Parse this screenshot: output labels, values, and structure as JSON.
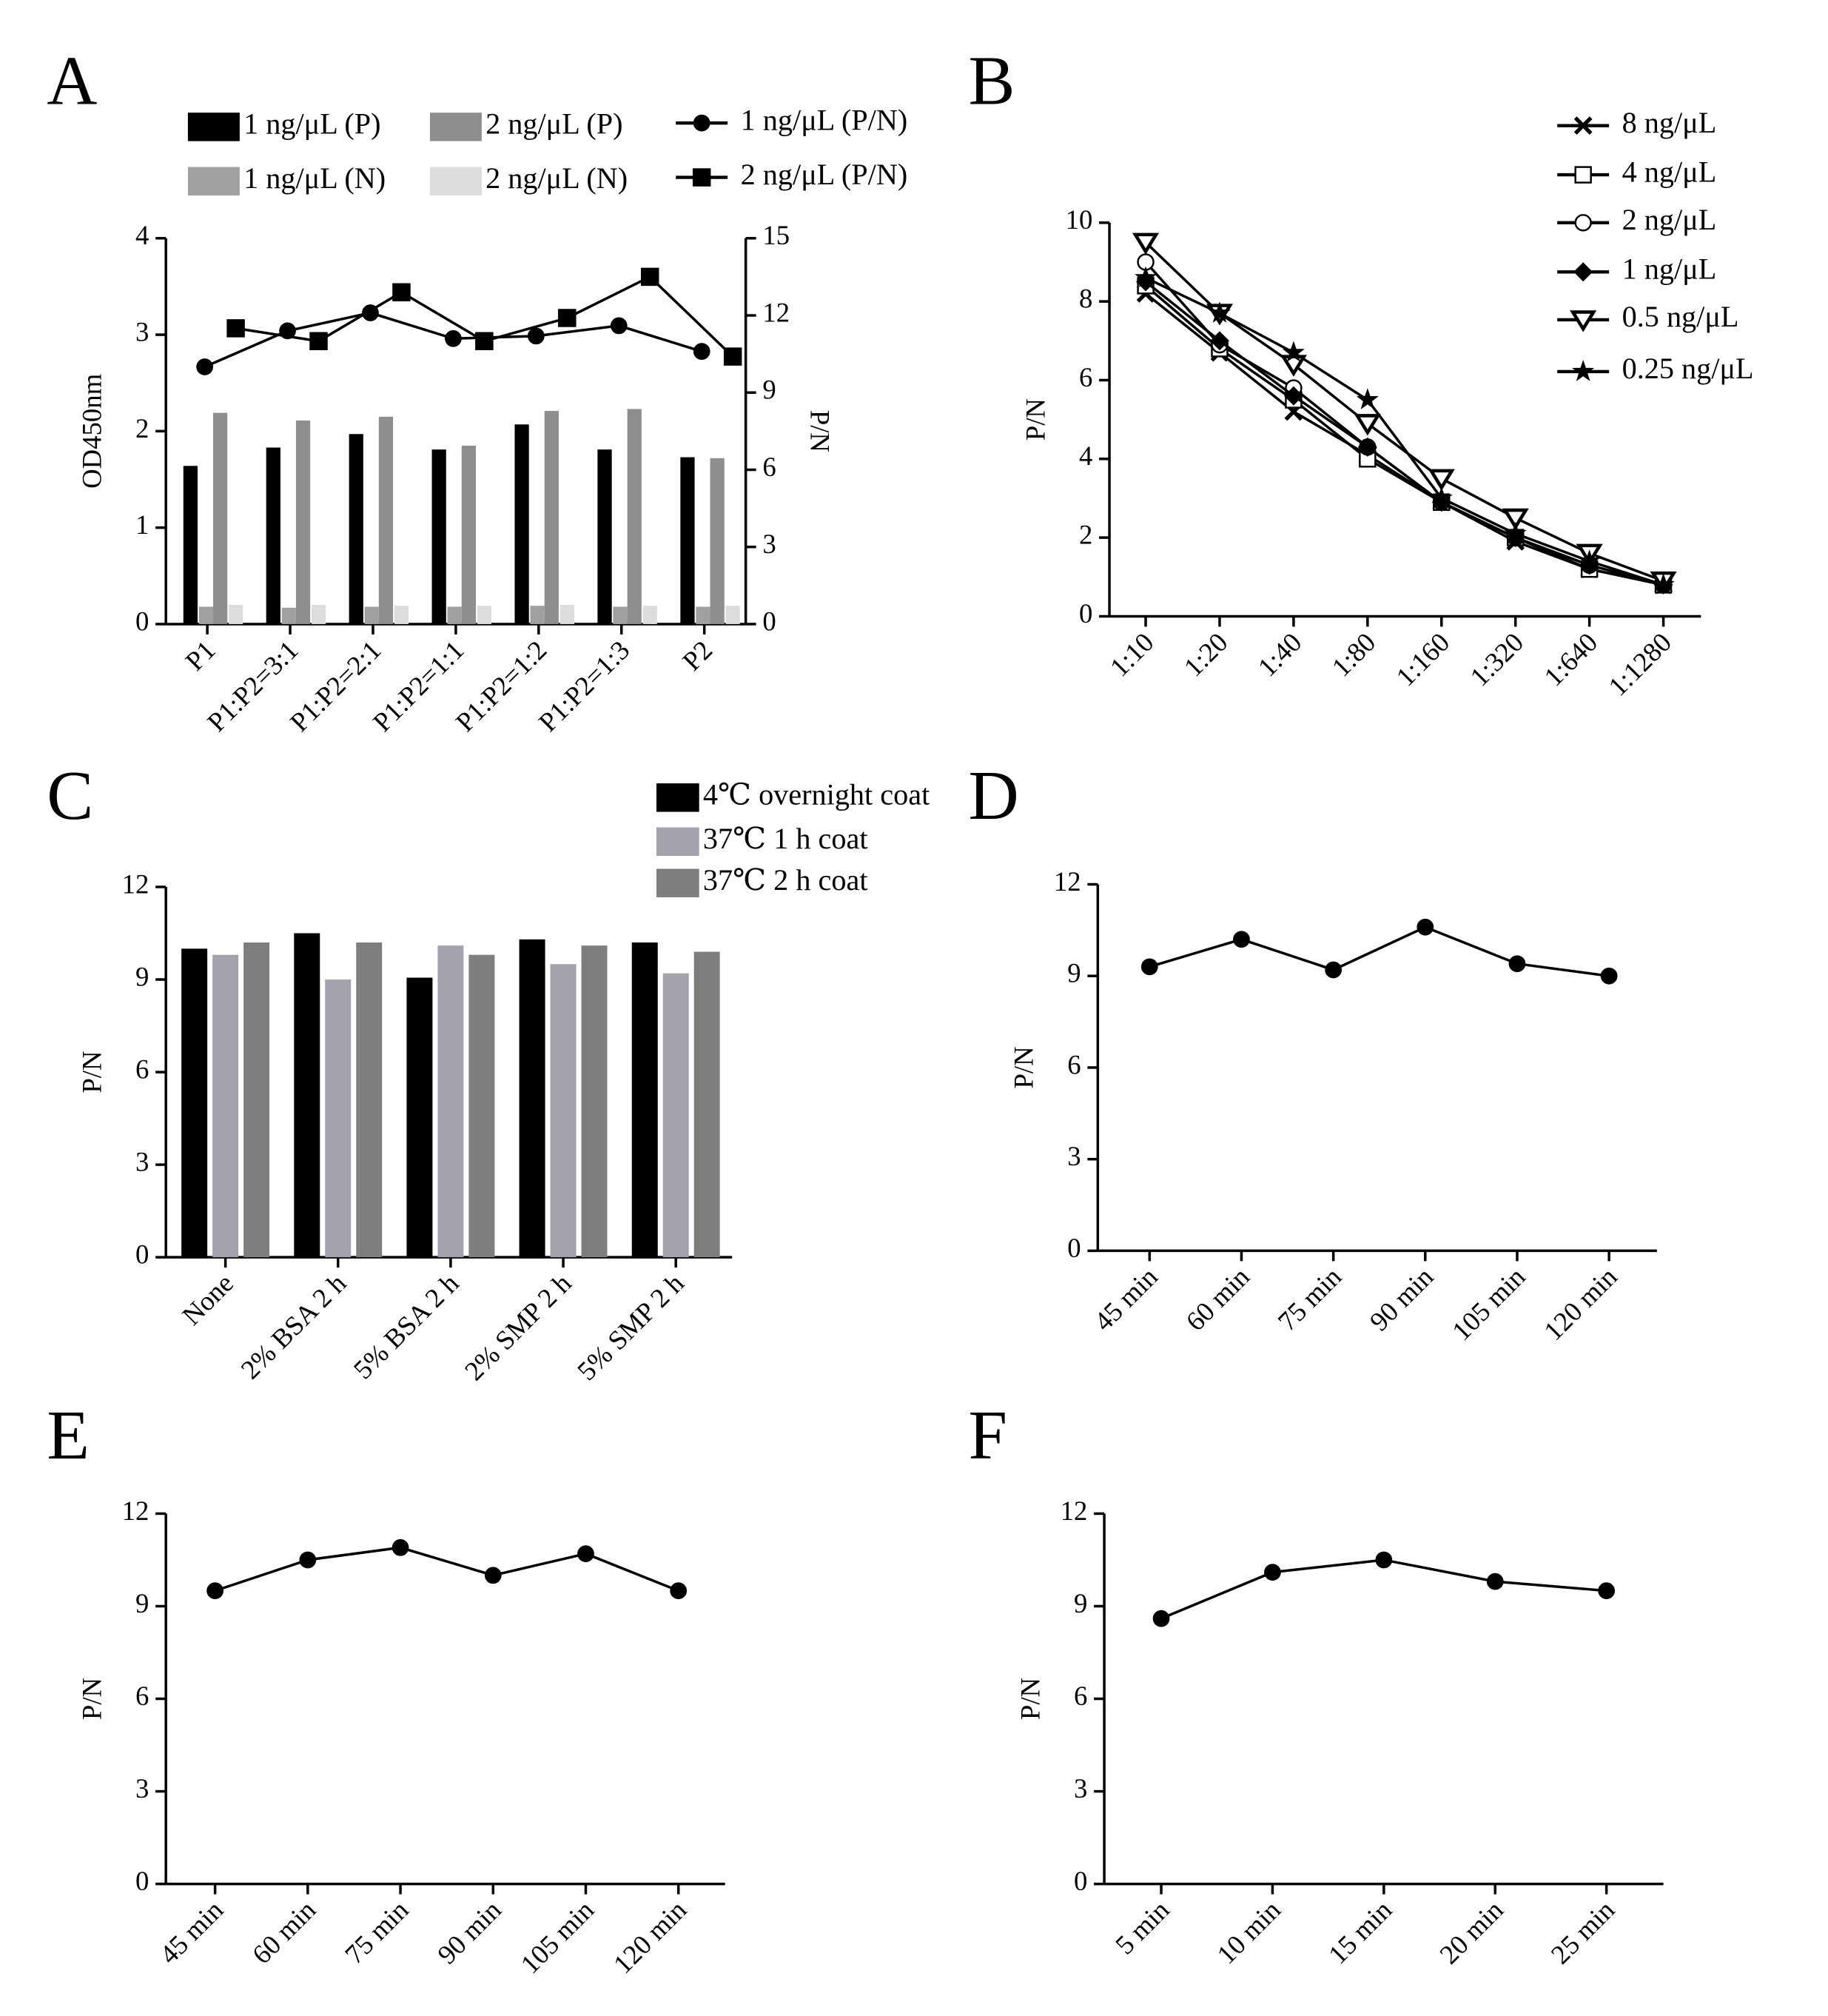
{
  "chart_data": [
    {
      "panel": "A",
      "type": "bar",
      "categories": [
        "P1",
        "P1:P2=3:1",
        "P1:P2=2:1",
        "P1:P2=1:1",
        "P1:P2=1:2",
        "P1:P2=1:3",
        "P2"
      ],
      "series": [
        {
          "name": "1 ng/μL (P)",
          "color": "#000000",
          "values": [
            1.64,
            1.83,
            1.97,
            1.81,
            2.07,
            1.81,
            1.73
          ]
        },
        {
          "name": "1 ng/μL (N)",
          "color": "#a0a0a0",
          "values": [
            0.18,
            0.17,
            0.18,
            0.18,
            0.19,
            0.18,
            0.18
          ]
        },
        {
          "name": "2 ng/μL (P)",
          "color": "#8e8e8e",
          "values": [
            2.19,
            2.11,
            2.15,
            1.85,
            2.21,
            2.23,
            1.72
          ]
        },
        {
          "name": "2 ng/μL (N)",
          "color": "#dcdcdc",
          "values": [
            0.2,
            0.2,
            0.19,
            0.19,
            0.2,
            0.19,
            0.19
          ]
        },
        {
          "name": "1 ng/μL (P/N)",
          "type": "line",
          "marker": "circle",
          "axis": "y2",
          "color": "#000000",
          "values": [
            10.0,
            11.4,
            12.1,
            11.1,
            11.2,
            11.6,
            10.6
          ]
        },
        {
          "name": "2 ng/μL (P/N)",
          "type": "line",
          "marker": "square",
          "axis": "y2",
          "color": "#000000",
          "values": [
            11.5,
            11.0,
            12.9,
            11.0,
            11.9,
            13.5,
            10.4
          ]
        }
      ],
      "ylabel": "OD450nm",
      "y2label": "P/N",
      "ylim": [
        0,
        4
      ],
      "yticks": [
        0,
        1,
        2,
        3,
        4
      ],
      "y2lim": [
        0,
        15
      ],
      "y2ticks": [
        0,
        3,
        6,
        9,
        12,
        15
      ]
    },
    {
      "panel": "B",
      "type": "line",
      "categories": [
        "1:10",
        "1:20",
        "1:40",
        "1:80",
        "1:160",
        "1:320",
        "1:640",
        "1:1280"
      ],
      "series": [
        {
          "name": "8 ng/μL",
          "marker": "x",
          "color": "#000000",
          "values": [
            8.2,
            6.7,
            5.2,
            4.1,
            2.9,
            1.9,
            1.2,
            0.8
          ]
        },
        {
          "name": "4 ng/μL",
          "marker": "open-square",
          "color": "#000000",
          "values": [
            8.4,
            6.8,
            5.5,
            4.0,
            2.9,
            2.0,
            1.2,
            0.8
          ]
        },
        {
          "name": "2 ng/μL",
          "marker": "open-circle",
          "color": "#000000",
          "values": [
            9.0,
            6.9,
            5.8,
            4.3,
            2.9,
            2.0,
            1.3,
            0.8
          ]
        },
        {
          "name": "1 ng/μL",
          "marker": "diamond",
          "color": "#000000",
          "values": [
            8.5,
            7.0,
            5.6,
            4.3,
            2.9,
            2.0,
            1.3,
            0.8
          ]
        },
        {
          "name": "0.5 ng/μL",
          "marker": "triangle-down",
          "color": "#000000",
          "values": [
            9.5,
            7.7,
            6.4,
            4.9,
            3.5,
            2.5,
            1.6,
            0.9
          ]
        },
        {
          "name": "0.25 ng/μL",
          "marker": "star",
          "color": "#000000",
          "values": [
            8.6,
            7.7,
            6.7,
            5.5,
            3.0,
            2.1,
            1.4,
            0.8
          ]
        }
      ],
      "ylabel": "P/N",
      "ylim": [
        0,
        10
      ],
      "yticks": [
        0,
        2,
        4,
        6,
        8,
        10
      ]
    },
    {
      "panel": "C",
      "type": "bar",
      "categories": [
        "None",
        "2% BSA 2 h",
        "5% BSA 2 h",
        "2% SMP 2 h",
        "5% SMP 2 h"
      ],
      "series": [
        {
          "name": "4℃ overnight coat",
          "color": "#000000",
          "values": [
            10.0,
            10.5,
            9.06,
            10.3,
            10.2
          ]
        },
        {
          "name": "37℃ 1 h coat",
          "color": "#a2a2aa",
          "values": [
            9.8,
            9.0,
            10.1,
            9.5,
            9.2
          ]
        },
        {
          "name": "37℃ 2 h coat",
          "color": "#7e7e7e",
          "values": [
            10.2,
            10.2,
            9.8,
            10.1,
            9.9
          ]
        }
      ],
      "ylabel": "P/N",
      "ylim": [
        0,
        12
      ],
      "yticks": [
        0,
        3,
        6,
        9,
        12
      ]
    },
    {
      "panel": "D",
      "type": "line",
      "marker": "circle",
      "color": "#000000",
      "categories": [
        "45 min",
        "60 min",
        "75 min",
        "90 min",
        "105 min",
        "120 min"
      ],
      "values": [
        9.3,
        10.2,
        9.2,
        10.6,
        9.4,
        9.0
      ],
      "ylabel": "P/N",
      "ylim": [
        0,
        12
      ],
      "yticks": [
        0,
        3,
        6,
        9,
        12
      ]
    },
    {
      "panel": "E",
      "type": "line",
      "marker": "circle",
      "color": "#000000",
      "categories": [
        "45 min",
        "60 min",
        "75 min",
        "90 min",
        "105 min",
        "120 min"
      ],
      "values": [
        9.5,
        10.5,
        10.9,
        10.0,
        10.7,
        9.5
      ],
      "ylabel": "P/N",
      "ylim": [
        0,
        12
      ],
      "yticks": [
        0,
        3,
        6,
        9,
        12
      ]
    },
    {
      "panel": "F",
      "type": "line",
      "marker": "circle",
      "color": "#000000",
      "categories": [
        "5 min",
        "10 min",
        "15 min",
        "20 min",
        "25 min"
      ],
      "values": [
        8.6,
        10.1,
        10.5,
        9.8,
        9.5
      ],
      "ylabel": "P/N",
      "ylim": [
        0,
        12
      ],
      "yticks": [
        0,
        3,
        6,
        9,
        12
      ]
    }
  ]
}
